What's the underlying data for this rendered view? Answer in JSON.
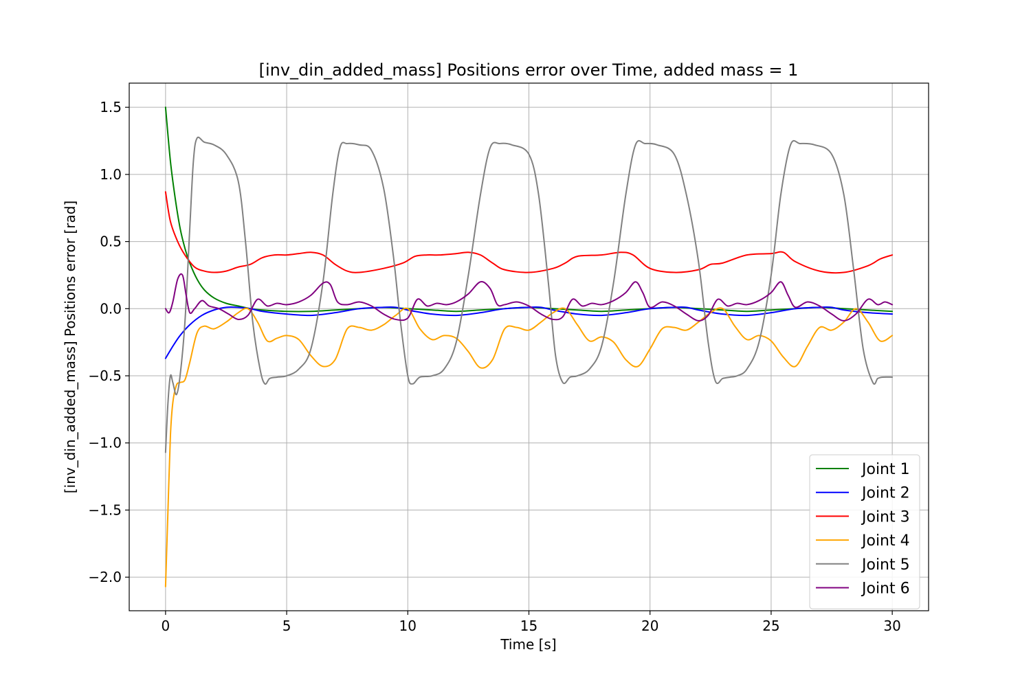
{
  "chart_data": {
    "type": "line",
    "title": "[inv_din_added_mass] Positions error over Time, added mass = 1",
    "xlabel": "Time [s]",
    "ylabel": "[inv_din_added_mass] Positions error [rad]",
    "xlim": [
      -1.5,
      31.5
    ],
    "ylim": [
      -2.25,
      1.68
    ],
    "xticks": [
      0,
      5,
      10,
      15,
      20,
      25,
      30
    ],
    "yticks": [
      -2.0,
      -1.5,
      -1.0,
      -0.5,
      0.0,
      0.5,
      1.0,
      1.5
    ],
    "xtick_labels": [
      "0",
      "5",
      "10",
      "15",
      "20",
      "25",
      "30"
    ],
    "ytick_labels": [
      "−2.0",
      "−1.5",
      "−1.0",
      "−0.5",
      "0.0",
      "0.5",
      "1.0",
      "1.5"
    ],
    "grid": true,
    "legend_position": "lower-right",
    "series": [
      {
        "name": "Joint 1",
        "color": "#008000",
        "x": [
          0,
          0.2,
          0.4,
          0.6,
          0.8,
          1.0,
          1.3,
          1.6,
          2.0,
          2.5,
          3.0,
          3.5,
          4.0,
          5.0,
          6.0,
          7.0,
          8.0,
          9.0,
          10.0,
          11.0,
          12.0,
          13.0,
          14.0,
          15.0,
          16.0,
          17.0,
          18.0,
          19.0,
          20.0,
          21.0,
          22.0,
          23.0,
          24.0,
          25.0,
          26.0,
          27.0,
          28.0,
          29.0,
          30.0
        ],
        "y": [
          1.5,
          1.1,
          0.82,
          0.6,
          0.45,
          0.34,
          0.22,
          0.14,
          0.08,
          0.04,
          0.02,
          0.0,
          -0.01,
          -0.02,
          -0.02,
          -0.01,
          0.0,
          0.01,
          0.0,
          -0.01,
          -0.02,
          -0.01,
          0.0,
          0.01,
          0.0,
          -0.01,
          -0.02,
          -0.01,
          0.0,
          0.01,
          0.0,
          -0.01,
          -0.02,
          -0.01,
          0.0,
          0.01,
          0.0,
          -0.01,
          -0.02
        ]
      },
      {
        "name": "Joint 2",
        "color": "#0000ff",
        "x": [
          0,
          0.3,
          0.6,
          1.0,
          1.5,
          2.0,
          2.5,
          3.0,
          3.5,
          4.0,
          5.0,
          6.0,
          7.0,
          8.0,
          9.0,
          9.5,
          10.0,
          11.0,
          12.0,
          13.0,
          14.0,
          15.0,
          15.5,
          16.0,
          17.0,
          18.0,
          19.0,
          20.0,
          21.0,
          21.5,
          22.0,
          23.0,
          24.0,
          25.0,
          26.0,
          27.0,
          27.5,
          28.0,
          29.0,
          30.0
        ],
        "y": [
          -0.37,
          -0.28,
          -0.2,
          -0.12,
          -0.05,
          -0.01,
          0.01,
          0.01,
          0.0,
          -0.02,
          -0.04,
          -0.05,
          -0.03,
          0.0,
          0.01,
          0.01,
          -0.01,
          -0.04,
          -0.05,
          -0.03,
          0.0,
          0.01,
          0.01,
          -0.01,
          -0.04,
          -0.05,
          -0.03,
          0.0,
          0.01,
          0.01,
          -0.01,
          -0.04,
          -0.05,
          -0.03,
          0.0,
          0.01,
          0.01,
          -0.01,
          -0.03,
          -0.04
        ]
      },
      {
        "name": "Joint 3",
        "color": "#ff0000",
        "x": [
          0,
          0.2,
          0.5,
          0.8,
          1.2,
          1.6,
          2.0,
          2.5,
          3.0,
          3.5,
          4.0,
          4.5,
          5.0,
          5.5,
          6.0,
          6.5,
          7.0,
          7.5,
          8.0,
          9.0,
          9.8,
          10.3,
          10.8,
          11.3,
          12.0,
          12.5,
          13.0,
          13.5,
          14.0,
          15.0,
          16.0,
          16.5,
          17.0,
          18.0,
          18.8,
          19.3,
          20.0,
          21.0,
          22.0,
          22.5,
          23.0,
          24.0,
          25.0,
          25.5,
          26.0,
          27.0,
          28.0,
          29.0,
          29.5,
          30.0
        ],
        "y": [
          0.87,
          0.65,
          0.5,
          0.4,
          0.31,
          0.28,
          0.27,
          0.28,
          0.31,
          0.33,
          0.38,
          0.4,
          0.4,
          0.41,
          0.42,
          0.4,
          0.33,
          0.28,
          0.27,
          0.3,
          0.34,
          0.39,
          0.4,
          0.4,
          0.41,
          0.42,
          0.4,
          0.34,
          0.29,
          0.27,
          0.3,
          0.34,
          0.39,
          0.4,
          0.42,
          0.4,
          0.3,
          0.27,
          0.29,
          0.33,
          0.34,
          0.4,
          0.41,
          0.42,
          0.35,
          0.28,
          0.27,
          0.32,
          0.37,
          0.4
        ]
      },
      {
        "name": "Joint 4",
        "color": "#ffa500",
        "x": [
          0,
          0.1,
          0.2,
          0.3,
          0.45,
          0.6,
          0.8,
          1.0,
          1.3,
          1.6,
          2.0,
          2.5,
          3.0,
          3.4,
          3.8,
          4.2,
          4.6,
          5.0,
          5.5,
          6.0,
          6.5,
          7.0,
          7.5,
          8.0,
          8.5,
          9.0,
          9.5,
          10.0,
          10.5,
          11.0,
          11.5,
          12.0,
          12.5,
          13.0,
          13.5,
          14.0,
          14.5,
          15.0,
          15.5,
          16.0,
          16.5,
          17.0,
          17.5,
          18.0,
          18.5,
          19.0,
          19.5,
          20.0,
          20.5,
          21.0,
          21.5,
          22.0,
          22.5,
          23.0,
          23.5,
          24.0,
          24.5,
          25.0,
          25.5,
          26.0,
          26.5,
          27.0,
          27.5,
          28.0,
          28.5,
          29.0,
          29.5,
          30.0
        ],
        "y": [
          -2.07,
          -1.5,
          -0.95,
          -0.7,
          -0.57,
          -0.55,
          -0.53,
          -0.4,
          -0.18,
          -0.13,
          -0.15,
          -0.1,
          -0.03,
          0.0,
          -0.1,
          -0.24,
          -0.22,
          -0.2,
          -0.23,
          -0.35,
          -0.43,
          -0.38,
          -0.15,
          -0.14,
          -0.16,
          -0.12,
          -0.05,
          0.0,
          -0.15,
          -0.23,
          -0.2,
          -0.22,
          -0.32,
          -0.44,
          -0.38,
          -0.15,
          -0.14,
          -0.16,
          -0.1,
          -0.03,
          0.0,
          -0.12,
          -0.24,
          -0.21,
          -0.25,
          -0.38,
          -0.43,
          -0.3,
          -0.15,
          -0.14,
          -0.16,
          -0.1,
          -0.03,
          0.0,
          -0.13,
          -0.23,
          -0.2,
          -0.24,
          -0.36,
          -0.43,
          -0.28,
          -0.14,
          -0.16,
          -0.1,
          0.0,
          -0.1,
          -0.24,
          -0.2
        ]
      },
      {
        "name": "Joint 5",
        "color": "#808080",
        "x": [
          0,
          0.1,
          0.2,
          0.3,
          0.45,
          0.6,
          0.8,
          1.0,
          1.15,
          1.3,
          1.6,
          2.0,
          2.5,
          3.0,
          3.3,
          3.6,
          3.9,
          4.1,
          4.3,
          4.6,
          5.0,
          5.5,
          6.0,
          6.5,
          6.9,
          7.2,
          7.5,
          8.0,
          8.5,
          9.0,
          9.4,
          9.7,
          10.0,
          10.2,
          10.5,
          11.0,
          11.5,
          12.0,
          12.5,
          13.0,
          13.4,
          13.8,
          14.3,
          15.0,
          15.4,
          15.8,
          16.1,
          16.4,
          16.7,
          17.0,
          17.5,
          18.0,
          18.5,
          19.0,
          19.4,
          19.8,
          20.3,
          21.0,
          21.5,
          22.0,
          22.4,
          22.7,
          23.0,
          23.3,
          23.6,
          24.0,
          24.5,
          25.0,
          25.4,
          25.8,
          26.2,
          26.8,
          27.5,
          28.0,
          28.4,
          28.8,
          29.2,
          29.4,
          29.6,
          30.0
        ],
        "y": [
          -1.07,
          -0.7,
          -0.5,
          -0.55,
          -0.64,
          -0.5,
          -0.1,
          0.6,
          1.1,
          1.27,
          1.24,
          1.22,
          1.15,
          0.95,
          0.5,
          -0.1,
          -0.45,
          -0.56,
          -0.52,
          -0.51,
          -0.5,
          -0.45,
          -0.3,
          0.2,
          0.85,
          1.2,
          1.23,
          1.22,
          1.18,
          0.9,
          0.4,
          -0.1,
          -0.5,
          -0.56,
          -0.51,
          -0.5,
          -0.45,
          -0.25,
          0.25,
          0.85,
          1.2,
          1.23,
          1.22,
          1.15,
          0.85,
          0.2,
          -0.35,
          -0.55,
          -0.51,
          -0.5,
          -0.45,
          -0.28,
          0.2,
          0.85,
          1.22,
          1.23,
          1.22,
          1.15,
          0.85,
          0.35,
          -0.25,
          -0.54,
          -0.52,
          -0.51,
          -0.5,
          -0.45,
          -0.25,
          0.25,
          0.85,
          1.22,
          1.23,
          1.22,
          1.15,
          0.85,
          0.3,
          -0.3,
          -0.55,
          -0.52,
          -0.51,
          -0.51
        ]
      },
      {
        "name": "Joint 6",
        "color": "#800080",
        "x": [
          0,
          0.15,
          0.3,
          0.5,
          0.7,
          0.85,
          1.0,
          1.2,
          1.5,
          1.8,
          2.2,
          2.6,
          3.0,
          3.4,
          3.8,
          4.2,
          4.6,
          5.0,
          5.5,
          6.0,
          6.5,
          6.8,
          7.1,
          7.5,
          8.0,
          8.5,
          9.0,
          9.5,
          10.0,
          10.4,
          10.8,
          11.2,
          11.6,
          12.0,
          12.5,
          13.0,
          13.4,
          13.7,
          14.0,
          14.5,
          15.0,
          15.5,
          16.0,
          16.4,
          16.8,
          17.2,
          17.6,
          18.0,
          18.5,
          19.0,
          19.4,
          19.7,
          20.0,
          20.5,
          21.0,
          21.5,
          22.0,
          22.4,
          22.8,
          23.2,
          23.6,
          24.0,
          24.5,
          25.0,
          25.4,
          25.7,
          26.0,
          26.5,
          27.0,
          27.5,
          28.0,
          28.5,
          29.0,
          29.4,
          29.7,
          30.0
        ],
        "y": [
          0.0,
          -0.03,
          0.05,
          0.22,
          0.25,
          0.1,
          -0.03,
          0.0,
          0.06,
          0.02,
          0.0,
          -0.04,
          -0.08,
          -0.05,
          0.07,
          0.02,
          0.04,
          0.03,
          0.05,
          0.1,
          0.19,
          0.18,
          0.05,
          0.03,
          0.05,
          0.02,
          -0.04,
          -0.08,
          -0.07,
          0.07,
          0.02,
          0.04,
          0.03,
          0.05,
          0.11,
          0.2,
          0.15,
          0.03,
          0.03,
          0.05,
          0.02,
          -0.04,
          -0.08,
          -0.06,
          0.07,
          0.02,
          0.04,
          0.03,
          0.06,
          0.12,
          0.2,
          0.12,
          0.01,
          0.05,
          0.02,
          -0.04,
          -0.09,
          -0.05,
          0.07,
          0.02,
          0.04,
          0.03,
          0.06,
          0.12,
          0.2,
          0.1,
          0.01,
          0.05,
          0.02,
          -0.04,
          -0.09,
          -0.04,
          0.07,
          0.03,
          0.05,
          0.03
        ]
      }
    ]
  }
}
